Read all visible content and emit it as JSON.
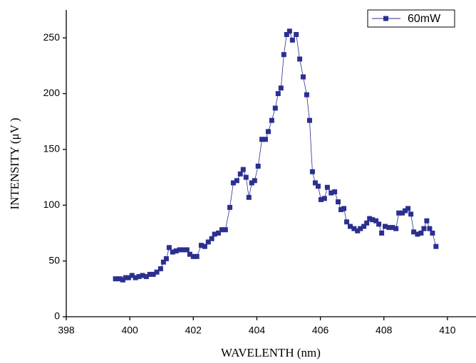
{
  "chart_data": {
    "type": "line",
    "x_label": "WAVELENTH (nm)",
    "y_label": "INTENSITY (μV )",
    "series": [
      {
        "name": "60mW",
        "color": "#2b2f8f",
        "x": [
          399.55,
          399.69,
          399.78,
          399.87,
          399.96,
          400.07,
          400.18,
          400.29,
          400.4,
          400.52,
          400.63,
          400.74,
          400.85,
          400.97,
          401.06,
          401.15,
          401.24,
          401.35,
          401.46,
          401.57,
          401.69,
          401.8,
          401.89,
          402.0,
          402.11,
          402.25,
          402.36,
          402.47,
          402.58,
          402.67,
          402.79,
          402.9,
          403.01,
          403.15,
          403.26,
          403.37,
          403.48,
          403.57,
          403.66,
          403.75,
          403.84,
          403.93,
          404.04,
          404.16,
          404.27,
          404.36,
          404.47,
          404.58,
          404.67,
          404.76,
          404.85,
          404.94,
          405.03,
          405.12,
          405.24,
          405.35,
          405.46,
          405.57,
          405.66,
          405.75,
          405.84,
          405.93,
          406.02,
          406.13,
          406.22,
          406.34,
          406.45,
          406.56,
          406.65,
          406.74,
          406.83,
          406.94,
          407.06,
          407.17,
          407.26,
          407.37,
          407.46,
          407.55,
          407.64,
          407.75,
          407.84,
          407.93,
          408.04,
          408.16,
          408.27,
          408.38,
          408.47,
          408.58,
          408.67,
          408.76,
          408.85,
          408.94,
          409.06,
          409.17,
          409.26,
          409.35,
          409.44,
          409.53,
          409.64
        ],
        "values": [
          34,
          34,
          33,
          35,
          35,
          37,
          35,
          36,
          37,
          36,
          38,
          38,
          40,
          43,
          49,
          52,
          62,
          58,
          59,
          60,
          60,
          60,
          56,
          54,
          54,
          64,
          63,
          67,
          70,
          74,
          75,
          78,
          78,
          98,
          120,
          122,
          128,
          132,
          125,
          107,
          120,
          122,
          135,
          159,
          159,
          166,
          176,
          187,
          200,
          205,
          235,
          253,
          256,
          248,
          253,
          231,
          215,
          199,
          176,
          130,
          120,
          117,
          105,
          106,
          116,
          111,
          112,
          103,
          96,
          97,
          85,
          81,
          79,
          77,
          79,
          81,
          84,
          88,
          87,
          86,
          83,
          75,
          81,
          80,
          80,
          79,
          93,
          93,
          95,
          97,
          92,
          76,
          74,
          75,
          79,
          86,
          79,
          75,
          63
        ]
      }
    ],
    "xlim": [
      398,
      410.9
    ],
    "xticks": [
      398,
      400,
      402,
      404,
      406,
      408,
      410
    ],
    "ylim": [
      0,
      275
    ],
    "yticks": [
      0,
      50,
      100,
      150,
      200,
      250
    ],
    "legend": "top-right"
  }
}
